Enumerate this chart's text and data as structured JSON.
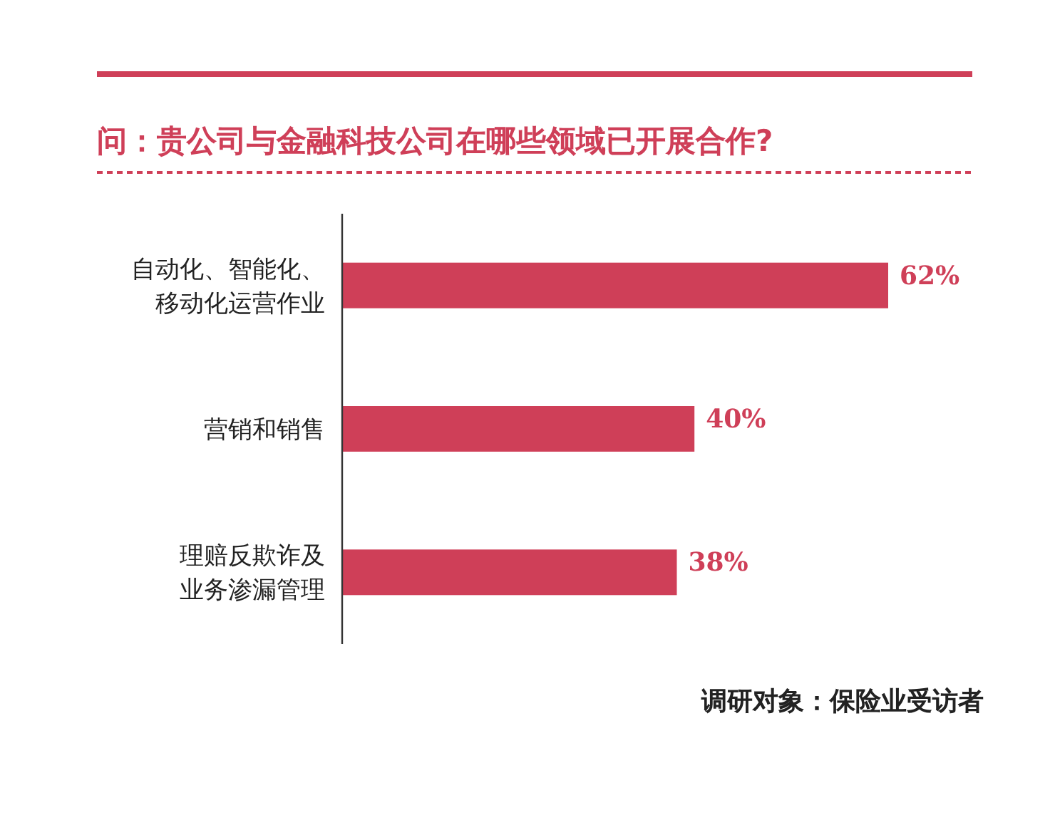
{
  "chart_data": {
    "type": "bar",
    "orientation": "horizontal",
    "title": "问：贵公司与金融科技公司在哪些领域已开展合作?",
    "categories": [
      "自动化、智能化、移动化运营作业",
      "营销和销售",
      "理赔反欺诈及业务渗漏管理"
    ],
    "values": [
      62,
      40,
      38
    ],
    "value_labels": [
      "62%",
      "40%",
      "38%"
    ],
    "color": "#cf3f58",
    "annotations": [
      "调研对象：保险业受访者"
    ]
  }
}
